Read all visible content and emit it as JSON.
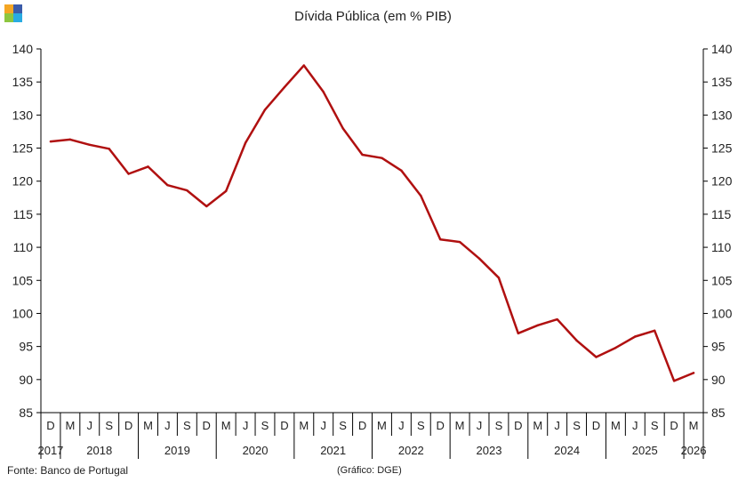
{
  "header": {
    "title": "Dívida Pública (em % PIB)"
  },
  "footer": {
    "source": "Fonte: Banco de Portugal",
    "credit": "(Gráfico: DGE)"
  },
  "colors": {
    "line": "#b01010",
    "logo": [
      "#f5a623",
      "#3b5ba9",
      "#8dc63f",
      "#29abe2"
    ]
  },
  "chart_data": {
    "type": "line",
    "title": "Dívida Pública (em % PIB)",
    "xlabel": "",
    "ylabel": "",
    "ylim": [
      85,
      140
    ],
    "yticks": [
      85,
      90,
      95,
      100,
      105,
      110,
      115,
      120,
      125,
      130,
      135,
      140
    ],
    "y_axis_sides": [
      "left",
      "right"
    ],
    "grid": false,
    "legend": "none",
    "categories": [
      "D",
      "M",
      "J",
      "S",
      "D",
      "M",
      "J",
      "S",
      "D",
      "M",
      "J",
      "S",
      "D",
      "M",
      "J",
      "S",
      "D",
      "M",
      "J",
      "S",
      "D",
      "M",
      "J",
      "S",
      "D",
      "M",
      "J",
      "S",
      "D",
      "M",
      "J",
      "S",
      "D",
      "M"
    ],
    "years": [
      {
        "label": "2017",
        "start": 0,
        "end": 0
      },
      {
        "label": "2018",
        "start": 1,
        "end": 4
      },
      {
        "label": "2019",
        "start": 5,
        "end": 8
      },
      {
        "label": "2020",
        "start": 9,
        "end": 12
      },
      {
        "label": "2021",
        "start": 13,
        "end": 16
      },
      {
        "label": "2022",
        "start": 17,
        "end": 20
      },
      {
        "label": "2023",
        "start": 21,
        "end": 24
      },
      {
        "label": "2024",
        "start": 25,
        "end": 28
      },
      {
        "label": "2025",
        "start": 29,
        "end": 32
      },
      {
        "label": "2026",
        "start": 33,
        "end": 33
      }
    ],
    "values": [
      126.0,
      126.3,
      125.5,
      124.9,
      121.1,
      122.2,
      119.4,
      118.6,
      116.2,
      118.5,
      125.8,
      130.8,
      134.2,
      137.5,
      133.5,
      128.0,
      124.0,
      123.5,
      121.6,
      117.8,
      111.2,
      110.8,
      108.3,
      105.4,
      97.0,
      98.2,
      99.1,
      95.9,
      93.4,
      94.8,
      96.5,
      97.4,
      89.8,
      91.0
    ]
  }
}
